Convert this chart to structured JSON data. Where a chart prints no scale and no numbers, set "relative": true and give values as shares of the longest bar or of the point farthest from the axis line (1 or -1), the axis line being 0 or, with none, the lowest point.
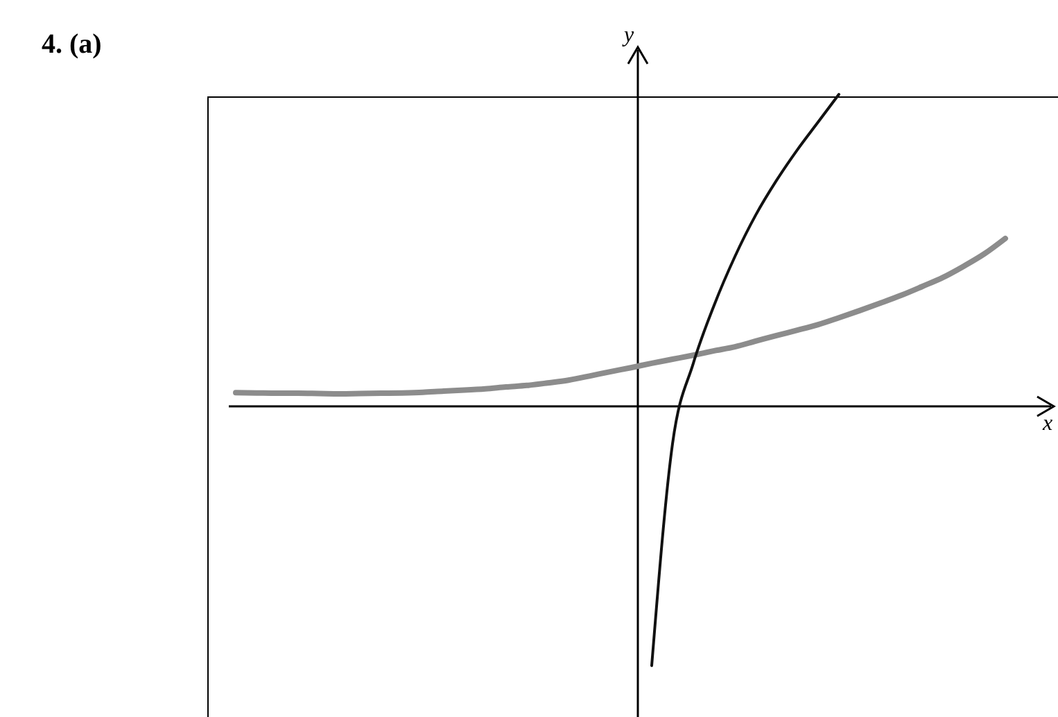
{
  "chart_data": {
    "type": "line",
    "title": "4. (a)",
    "xlabel": "x",
    "ylabel": "y",
    "relative": true,
    "marker": "none",
    "line_style": "solid",
    "categories": [
      null,
      null,
      null,
      null,
      null,
      null,
      null,
      null,
      null,
      null,
      null,
      null,
      null,
      null,
      null,
      null,
      null,
      null,
      null,
      null,
      null,
      null,
      null,
      null,
      null,
      null,
      null,
      null,
      null,
      null,
      null,
      null,
      null,
      null,
      null,
      null,
      null,
      null
    ],
    "series": [
      {
        "color": "#8c8c8c",
        "values": [
          0.044,
          0.043,
          0.042,
          0.042,
          0.041,
          0.04,
          0.041,
          0.042,
          0.043,
          0.045,
          0.049,
          0.052,
          0.056,
          0.062,
          0.067,
          0.075,
          0.084,
          0.097,
          0.111,
          0.124,
          0.138,
          0.151,
          0.164,
          0.178,
          0.191,
          0.209,
          0.227,
          0.244,
          0.262,
          0.284,
          0.307,
          0.331,
          0.356,
          0.384,
          0.413,
          0.449,
          0.489,
          0.538
        ]
      },
      {
        "color": "#111111",
        "values": [
          null,
          null,
          null,
          null,
          null,
          null,
          null,
          null,
          null,
          null,
          null,
          null,
          null,
          null,
          null,
          null,
          null,
          null,
          null,
          null,
          -0.831,
          -0.12,
          0.138,
          0.324,
          0.48,
          0.613,
          0.724,
          0.822,
          0.911,
          1.0,
          null,
          null,
          null,
          null,
          null,
          null,
          null,
          null
        ]
      }
    ]
  }
}
